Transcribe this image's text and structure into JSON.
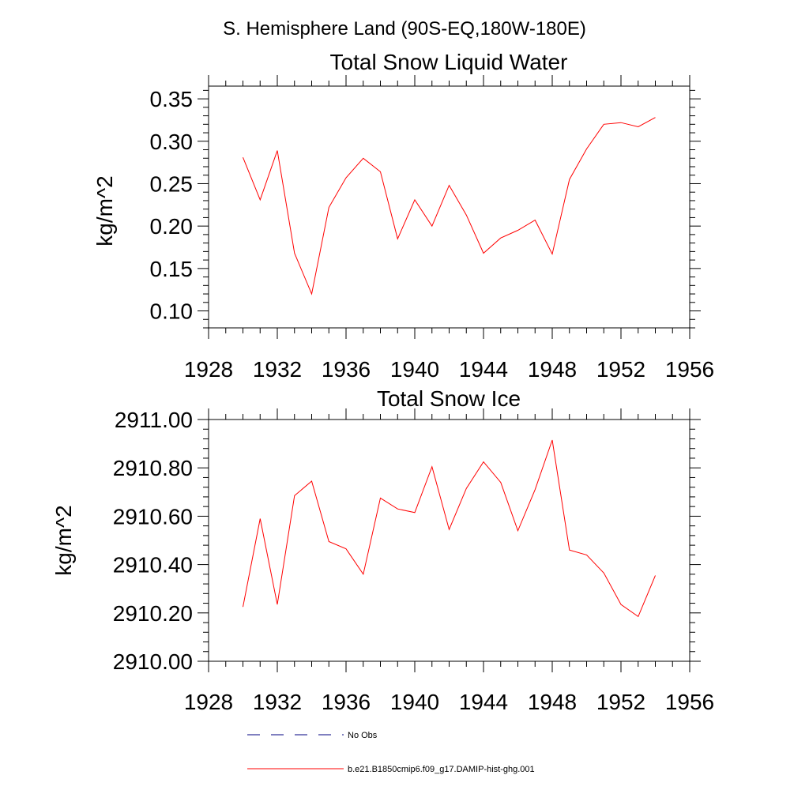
{
  "figure_title": "S. Hemisphere Land (90S-EQ,180W-180E)",
  "colors": {
    "series": "#ff0000",
    "axis": "#000000",
    "no_obs": "#000080"
  },
  "chart_data": [
    {
      "type": "line",
      "title": "Total Snow Liquid Water",
      "xlabel": "",
      "ylabel": "kg/m^2",
      "xlim": [
        1928,
        1956
      ],
      "ylim": [
        0.08,
        0.365
      ],
      "x_ticks": [
        1928,
        1932,
        1936,
        1940,
        1944,
        1948,
        1952,
        1956
      ],
      "x_tick_labels": [
        "1928",
        "1932",
        "1936",
        "1940",
        "1944",
        "1948",
        "1952",
        "1956"
      ],
      "y_ticks": [
        0.1,
        0.15,
        0.2,
        0.25,
        0.3,
        0.35
      ],
      "y_tick_labels": [
        "0.10",
        "0.15",
        "0.20",
        "0.25",
        "0.30",
        "0.35"
      ],
      "series": [
        {
          "name": "b.e21.B1850cmip6.f09_g17.DAMIP-hist-ghg.001",
          "x": [
            1930,
            1931,
            1932,
            1933,
            1934,
            1935,
            1936,
            1937,
            1938,
            1939,
            1940,
            1941,
            1942,
            1943,
            1944,
            1945,
            1946,
            1947,
            1948,
            1949,
            1950,
            1951,
            1952,
            1953,
            1954
          ],
          "values": [
            0.281,
            0.231,
            0.289,
            0.168,
            0.12,
            0.222,
            0.257,
            0.28,
            0.264,
            0.185,
            0.231,
            0.2,
            0.248,
            0.213,
            0.168,
            0.186,
            0.195,
            0.207,
            0.167,
            0.255,
            0.291,
            0.32,
            0.322,
            0.317,
            0.328
          ]
        }
      ]
    },
    {
      "type": "line",
      "title": "Total Snow Ice",
      "xlabel": "",
      "ylabel": "kg/m^2",
      "xlim": [
        1928,
        1956
      ],
      "ylim": [
        2910.0,
        2911.0
      ],
      "x_ticks": [
        1928,
        1932,
        1936,
        1940,
        1944,
        1948,
        1952,
        1956
      ],
      "x_tick_labels": [
        "1928",
        "1932",
        "1936",
        "1940",
        "1944",
        "1948",
        "1952",
        "1956"
      ],
      "y_ticks": [
        2910.0,
        2910.2,
        2910.4,
        2910.6,
        2910.8,
        2911.0
      ],
      "y_tick_labels": [
        "2910.00",
        "2910.20",
        "2910.40",
        "2910.60",
        "2910.80",
        "2911.00"
      ],
      "series": [
        {
          "name": "b.e21.B1850cmip6.f09_g17.DAMIP-hist-ghg.001",
          "x": [
            1930,
            1931,
            1932,
            1933,
            1934,
            1935,
            1936,
            1937,
            1938,
            1939,
            1940,
            1941,
            1942,
            1943,
            1944,
            1945,
            1946,
            1947,
            1948,
            1949,
            1950,
            1951,
            1952,
            1953,
            1954
          ],
          "values": [
            2910.225,
            2910.59,
            2910.235,
            2910.685,
            2910.745,
            2910.495,
            2910.465,
            2910.36,
            2910.675,
            2910.63,
            2910.615,
            2910.805,
            2910.545,
            2910.715,
            2910.825,
            2910.74,
            2910.54,
            2910.71,
            2910.915,
            2910.46,
            2910.44,
            2910.365,
            2910.235,
            2910.185,
            2910.355
          ]
        }
      ]
    }
  ],
  "legend": [
    {
      "label": "No Obs",
      "style": "dashed",
      "color": "#000080"
    },
    {
      "label": "b.e21.B1850cmip6.f09_g17.DAMIP-hist-ghg.001",
      "style": "solid",
      "color": "#ff0000"
    }
  ]
}
